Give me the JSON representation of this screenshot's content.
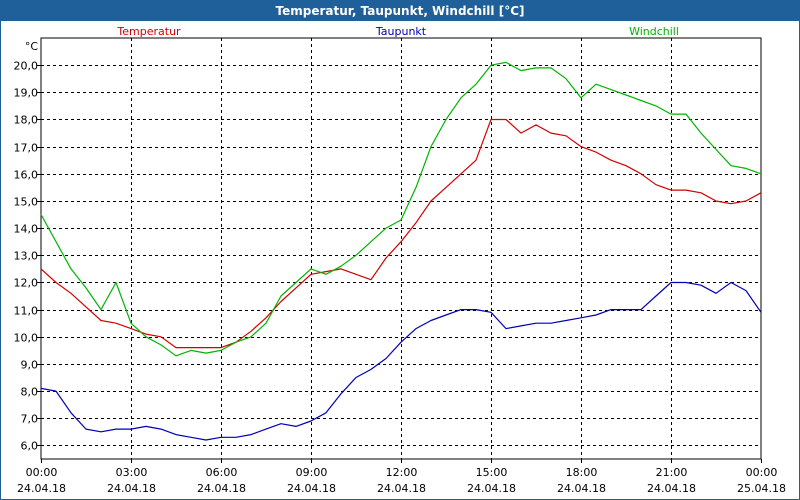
{
  "window": {
    "title": "Temperatur, Taupunkt, Windchill [°C]"
  },
  "chart_data": {
    "type": "line",
    "title": "Temperatur, Taupunkt, Windchill [°C]",
    "ylabel": "°C",
    "ylim": [
      5.5,
      21.0
    ],
    "yticks": [
      "6,0",
      "7,0",
      "8,0",
      "9,0",
      "10,0",
      "11,0",
      "12,0",
      "13,0",
      "14,0",
      "15,0",
      "16,0",
      "17,0",
      "18,0",
      "19,0",
      "20,0"
    ],
    "xlim": [
      0,
      24
    ],
    "xticks": [
      {
        "time": "00:00",
        "date": "24.04.18"
      },
      {
        "time": "03:00",
        "date": "24.04.18"
      },
      {
        "time": "06:00",
        "date": "24.04.18"
      },
      {
        "time": "09:00",
        "date": "24.04.18"
      },
      {
        "time": "12:00",
        "date": "24.04.18"
      },
      {
        "time": "15:00",
        "date": "24.04.18"
      },
      {
        "time": "18:00",
        "date": "24.04.18"
      },
      {
        "time": "21:00",
        "date": "24.04.18"
      },
      {
        "time": "00:00",
        "date": "25.04.18"
      }
    ],
    "grid": true,
    "legend_position": "top",
    "series": [
      {
        "name": "Temperatur",
        "color": "#d40000",
        "x": [
          0,
          0.5,
          1,
          1.5,
          2,
          2.5,
          3,
          3.5,
          4,
          4.5,
          5,
          5.5,
          6,
          6.5,
          7,
          7.5,
          8,
          8.5,
          9,
          9.5,
          10,
          10.5,
          11,
          11.5,
          12,
          12.5,
          13,
          13.5,
          14,
          14.5,
          15,
          15.5,
          16,
          16.5,
          17,
          17.5,
          18,
          18.5,
          19,
          19.5,
          20,
          20.5,
          21,
          21.5,
          22,
          22.5,
          23,
          23.5,
          24
        ],
        "values": [
          12.5,
          12.0,
          11.6,
          11.1,
          10.6,
          10.5,
          10.3,
          10.1,
          10.0,
          9.6,
          9.6,
          9.6,
          9.6,
          9.8,
          10.2,
          10.7,
          11.3,
          11.8,
          12.3,
          12.4,
          12.5,
          12.3,
          12.1,
          12.9,
          13.5,
          14.2,
          15.0,
          15.5,
          16.0,
          16.5,
          18.0,
          18.0,
          17.5,
          17.8,
          17.5,
          17.4,
          17.0,
          16.8,
          16.5,
          16.3,
          16.0,
          15.6,
          15.4,
          15.4,
          15.3,
          15.0,
          14.9,
          15.0,
          15.3
        ]
      },
      {
        "name": "Taupunkt",
        "color": "#0000b4",
        "x": [
          0,
          0.5,
          1,
          1.5,
          2,
          2.5,
          3,
          3.5,
          4,
          4.5,
          5,
          5.5,
          6,
          6.5,
          7,
          7.5,
          8,
          8.5,
          9,
          9.5,
          10,
          10.5,
          11,
          11.5,
          12,
          12.5,
          13,
          13.5,
          14,
          14.5,
          15,
          15.5,
          16,
          16.5,
          17,
          17.5,
          18,
          18.5,
          19,
          19.5,
          20,
          20.5,
          21,
          21.5,
          22,
          22.5,
          23,
          23.5,
          24
        ],
        "values": [
          8.1,
          8.0,
          7.2,
          6.6,
          6.5,
          6.6,
          6.6,
          6.7,
          6.6,
          6.4,
          6.3,
          6.2,
          6.3,
          6.3,
          6.4,
          6.6,
          6.8,
          6.7,
          6.9,
          7.2,
          7.9,
          8.5,
          8.8,
          9.2,
          9.8,
          10.3,
          10.6,
          10.8,
          11.0,
          11.0,
          10.9,
          10.3,
          10.4,
          10.5,
          10.5,
          10.6,
          10.7,
          10.8,
          11.0,
          11.0,
          11.0,
          11.5,
          12.0,
          12.0,
          11.9,
          11.6,
          12.0,
          11.7,
          10.9
        ]
      },
      {
        "name": "Windchill",
        "color": "#00b400",
        "x": [
          0,
          0.5,
          1,
          1.5,
          2,
          2.5,
          3,
          3.5,
          4,
          4.5,
          5,
          5.5,
          6,
          6.5,
          7,
          7.5,
          8,
          8.5,
          9,
          9.5,
          10,
          10.5,
          11,
          11.5,
          12,
          12.5,
          13,
          13.5,
          14,
          14.5,
          15,
          15.5,
          16,
          16.5,
          17,
          17.5,
          18,
          18.5,
          19,
          19.5,
          20,
          20.5,
          21,
          21.5,
          22,
          22.5,
          23,
          23.5,
          24
        ],
        "values": [
          14.5,
          13.5,
          12.5,
          11.8,
          11.0,
          12.0,
          10.5,
          10.0,
          9.7,
          9.3,
          9.5,
          9.4,
          9.5,
          9.8,
          10.0,
          10.5,
          11.5,
          12.0,
          12.5,
          12.3,
          12.6,
          13.0,
          13.5,
          14.0,
          14.3,
          15.5,
          17.0,
          18.0,
          18.8,
          19.3,
          20.0,
          20.1,
          19.8,
          19.9,
          19.9,
          19.5,
          18.8,
          19.3,
          19.1,
          18.9,
          18.7,
          18.5,
          18.2,
          18.2,
          17.5,
          16.9,
          16.3,
          16.2,
          16.0
        ]
      }
    ]
  }
}
